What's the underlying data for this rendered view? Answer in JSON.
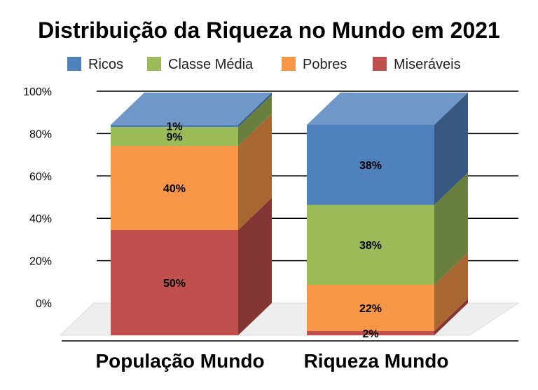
{
  "chart_data": {
    "type": "bar",
    "stacked": true,
    "three_d": true,
    "title": "Distribuição da Riqueza no Mundo em 2021",
    "categories": [
      "População Mundo",
      "Riqueza Mundo"
    ],
    "series": [
      {
        "name": "Miseráveis",
        "color": "#c0504d",
        "values": [
          50,
          2
        ]
      },
      {
        "name": "Pobres",
        "color": "#f79646",
        "values": [
          40,
          22
        ]
      },
      {
        "name": "Classe Média",
        "color": "#9bbb59",
        "values": [
          9,
          38
        ]
      },
      {
        "name": "Ricos",
        "color": "#4f81bd",
        "values": [
          1,
          38
        ]
      }
    ],
    "data_labels": [
      [
        "50%",
        "2%"
      ],
      [
        "40%",
        "22%"
      ],
      [
        "9%",
        "38%"
      ],
      [
        "1%",
        "38%"
      ]
    ],
    "legend_order": [
      "Ricos",
      "Classe Média",
      "Pobres",
      "Miseráveis"
    ],
    "y_ticks": [
      "0%",
      "20%",
      "40%",
      "60%",
      "80%",
      "100%"
    ],
    "ylim": [
      0,
      100
    ],
    "grid": true,
    "legend_position": "top"
  }
}
